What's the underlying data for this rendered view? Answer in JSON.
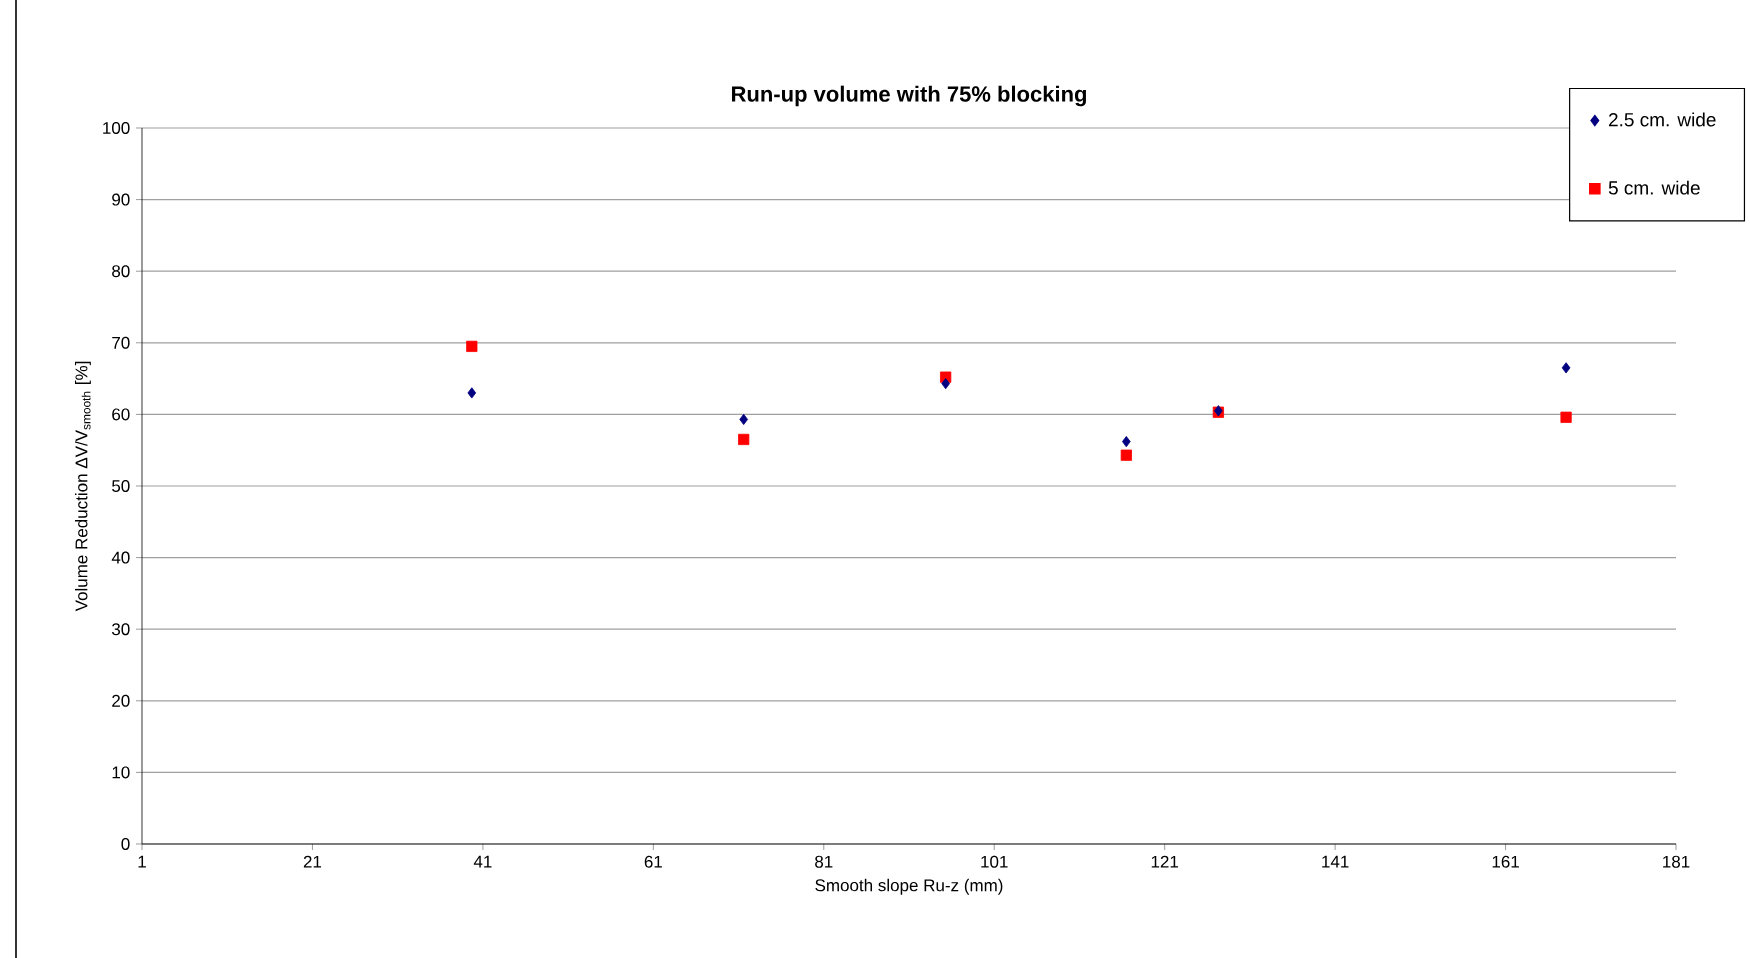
{
  "chart_data": {
    "type": "scatter",
    "title": "Run-up volume with 75% blocking",
    "xlabel": "Smooth slope Ru-z (mm)",
    "ylabel": "Volume Reduction  ΔV/V$_{smooth}$ [%]",
    "x": [
      39.7,
      71.6,
      95.3,
      116.5,
      127.3,
      168.1
    ],
    "series": [
      {
        "name": "2.5 cm. wide",
        "color": "#000080",
        "marker": "diamond",
        "values": [
          63.0,
          59.3,
          64.3,
          56.2,
          60.5,
          66.5
        ]
      },
      {
        "name": "5 cm. wide",
        "color": "#ff0000",
        "marker": "square",
        "values": [
          69.5,
          56.5,
          65.2,
          54.3,
          60.3,
          59.6
        ]
      }
    ],
    "xlim": [
      1,
      181
    ],
    "xticks": [
      1,
      21,
      41,
      61,
      81,
      101,
      121,
      141,
      161,
      181
    ],
    "ylim": [
      0,
      100
    ],
    "yticks": [
      0,
      10,
      20,
      30,
      40,
      50,
      60,
      70,
      80,
      90,
      100
    ],
    "grid": "y",
    "legend": "top right"
  }
}
